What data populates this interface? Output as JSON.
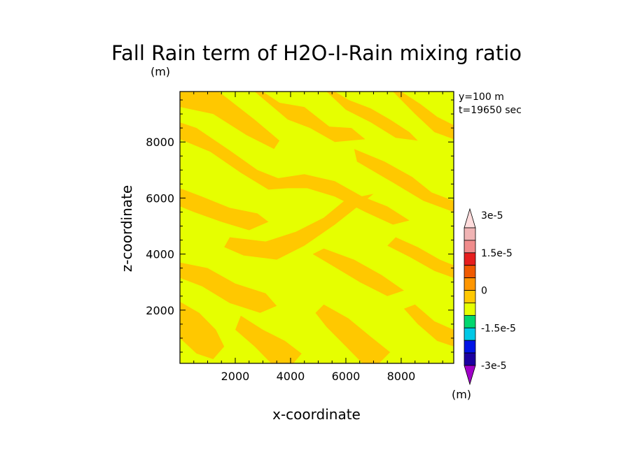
{
  "chart_data": {
    "type": "heatmap",
    "title": "Fall Rain term of H2O-I-Rain mixing ratio",
    "title_unit": "(m)",
    "xlabel": "x-coordinate",
    "ylabel": "z-coordinate",
    "annotations": [
      "y=100 m",
      "t=19650 sec"
    ],
    "xlim": [
      0,
      9900
    ],
    "ylim": [
      100,
      9800
    ],
    "xticks": [
      2000,
      4000,
      6000,
      8000
    ],
    "yticks": [
      2000,
      4000,
      6000,
      8000
    ],
    "xtick_labels": [
      "2000",
      "4000",
      "6000",
      "8000"
    ],
    "ytick_labels": [
      "2000",
      "4000",
      "6000",
      "8000"
    ],
    "grid": false,
    "colorbar": {
      "unit": "(m)",
      "levels": [
        -3e-05,
        -2.5e-05,
        -2e-05,
        -1.5e-05,
        -1e-05,
        -5e-06,
        0,
        5e-06,
        1e-05,
        1.5e-05,
        2e-05,
        2.5e-05,
        3e-05
      ],
      "colors": [
        "#a000c8",
        "#1c00a0",
        "#0014e6",
        "#00c8e6",
        "#00d76e",
        "#e6ff00",
        "#ffc800",
        "#ff9600",
        "#f05a00",
        "#e61e1e",
        "#f08c8c",
        "#f0b4b4",
        "#ffdcdc"
      ],
      "tick_labels": [
        {
          "value": -3e-05,
          "label": "-3e-5"
        },
        {
          "value": -1.5e-05,
          "label": "-1.5e-5"
        },
        {
          "value": 0,
          "label": "0"
        },
        {
          "value": 1.5e-05,
          "label": "1.5e-5"
        },
        {
          "value": 3e-05,
          "label": "3e-5"
        }
      ]
    },
    "field_colors": {
      "background": "#e6ff00",
      "band": "#ffc800"
    },
    "bands": [
      {
        "points": [
          [
            0,
            9800
          ],
          [
            1400,
            9800
          ],
          [
            2700,
            8800
          ],
          [
            3600,
            8050
          ],
          [
            3400,
            7750
          ],
          [
            2400,
            8250
          ],
          [
            1200,
            9000
          ],
          [
            0,
            9250
          ]
        ]
      },
      {
        "points": [
          [
            0,
            8700
          ],
          [
            600,
            8500
          ],
          [
            1800,
            7700
          ],
          [
            2800,
            7000
          ],
          [
            3700,
            6650
          ],
          [
            3900,
            6350
          ],
          [
            3200,
            6300
          ],
          [
            2200,
            6900
          ],
          [
            1100,
            7650
          ],
          [
            0,
            8100
          ]
        ]
      },
      {
        "points": [
          [
            3000,
            9800
          ],
          [
            3600,
            9400
          ],
          [
            4500,
            9250
          ],
          [
            5400,
            8550
          ],
          [
            6200,
            8500
          ],
          [
            6700,
            8100
          ],
          [
            5600,
            8000
          ],
          [
            4700,
            8500
          ],
          [
            3900,
            8800
          ],
          [
            2700,
            9800
          ]
        ]
      },
      {
        "points": [
          [
            5600,
            9800
          ],
          [
            6100,
            9500
          ],
          [
            6900,
            9200
          ],
          [
            7600,
            8800
          ],
          [
            8300,
            8350
          ],
          [
            8600,
            8050
          ],
          [
            7800,
            8150
          ],
          [
            6900,
            8700
          ],
          [
            6000,
            9150
          ],
          [
            5300,
            9800
          ]
        ]
      },
      {
        "points": [
          [
            8000,
            9800
          ],
          [
            8700,
            9350
          ],
          [
            9300,
            8900
          ],
          [
            9900,
            8600
          ],
          [
            9900,
            8100
          ],
          [
            9200,
            8350
          ],
          [
            8500,
            9000
          ],
          [
            7700,
            9800
          ]
        ]
      },
      {
        "points": [
          [
            6300,
            7750
          ],
          [
            7400,
            7300
          ],
          [
            8400,
            6750
          ],
          [
            9100,
            6200
          ],
          [
            9900,
            5900
          ],
          [
            9900,
            5500
          ],
          [
            8800,
            5900
          ],
          [
            7700,
            6550
          ],
          [
            6400,
            7300
          ]
        ]
      },
      {
        "points": [
          [
            0,
            6350
          ],
          [
            800,
            6050
          ],
          [
            1800,
            5650
          ],
          [
            2800,
            5450
          ],
          [
            3200,
            5150
          ],
          [
            2500,
            4850
          ],
          [
            1500,
            5150
          ],
          [
            500,
            5500
          ],
          [
            0,
            5700
          ]
        ]
      },
      {
        "points": [
          [
            1800,
            4600
          ],
          [
            3100,
            4450
          ],
          [
            4200,
            4800
          ],
          [
            5200,
            5300
          ],
          [
            6000,
            5950
          ],
          [
            7000,
            6150
          ],
          [
            6500,
            5750
          ],
          [
            5600,
            5050
          ],
          [
            4500,
            4300
          ],
          [
            3500,
            3800
          ],
          [
            2300,
            3950
          ],
          [
            1600,
            4250
          ]
        ]
      },
      {
        "points": [
          [
            3500,
            6700
          ],
          [
            4500,
            6850
          ],
          [
            5600,
            6600
          ],
          [
            6600,
            6050
          ],
          [
            7500,
            5700
          ],
          [
            8300,
            5200
          ],
          [
            7700,
            5050
          ],
          [
            6700,
            5500
          ],
          [
            5600,
            6050
          ],
          [
            4600,
            6350
          ],
          [
            3600,
            6350
          ]
        ]
      },
      {
        "points": [
          [
            0,
            3700
          ],
          [
            1000,
            3500
          ],
          [
            2000,
            2950
          ],
          [
            3100,
            2600
          ],
          [
            3500,
            2150
          ],
          [
            2900,
            1900
          ],
          [
            1800,
            2250
          ],
          [
            800,
            2850
          ],
          [
            0,
            3150
          ]
        ]
      },
      {
        "points": [
          [
            2200,
            1800
          ],
          [
            3000,
            1300
          ],
          [
            3800,
            900
          ],
          [
            4400,
            450
          ],
          [
            4100,
            100
          ],
          [
            3300,
            100
          ],
          [
            2700,
            700
          ],
          [
            2000,
            1300
          ]
        ]
      },
      {
        "points": [
          [
            5200,
            4200
          ],
          [
            6300,
            3800
          ],
          [
            7300,
            3250
          ],
          [
            8100,
            2700
          ],
          [
            7500,
            2500
          ],
          [
            6500,
            3000
          ],
          [
            5400,
            3650
          ],
          [
            4800,
            4000
          ]
        ]
      },
      {
        "points": [
          [
            5200,
            2200
          ],
          [
            6100,
            1700
          ],
          [
            6900,
            1050
          ],
          [
            7600,
            500
          ],
          [
            7200,
            100
          ],
          [
            6600,
            100
          ],
          [
            6000,
            700
          ],
          [
            5300,
            1400
          ],
          [
            4900,
            1900
          ]
        ]
      },
      {
        "points": [
          [
            7800,
            4600
          ],
          [
            8600,
            4250
          ],
          [
            9400,
            3800
          ],
          [
            9900,
            3600
          ],
          [
            9900,
            3150
          ],
          [
            9200,
            3400
          ],
          [
            8300,
            3900
          ],
          [
            7500,
            4300
          ]
        ]
      },
      {
        "points": [
          [
            0,
            2300
          ],
          [
            700,
            1900
          ],
          [
            1300,
            1300
          ],
          [
            1600,
            700
          ],
          [
            1200,
            250
          ],
          [
            600,
            450
          ],
          [
            0,
            1000
          ]
        ]
      },
      {
        "points": [
          [
            8500,
            2200
          ],
          [
            9200,
            1600
          ],
          [
            9900,
            1300
          ],
          [
            9900,
            700
          ],
          [
            9300,
            900
          ],
          [
            8600,
            1500
          ],
          [
            8100,
            2050
          ]
        ]
      }
    ]
  }
}
